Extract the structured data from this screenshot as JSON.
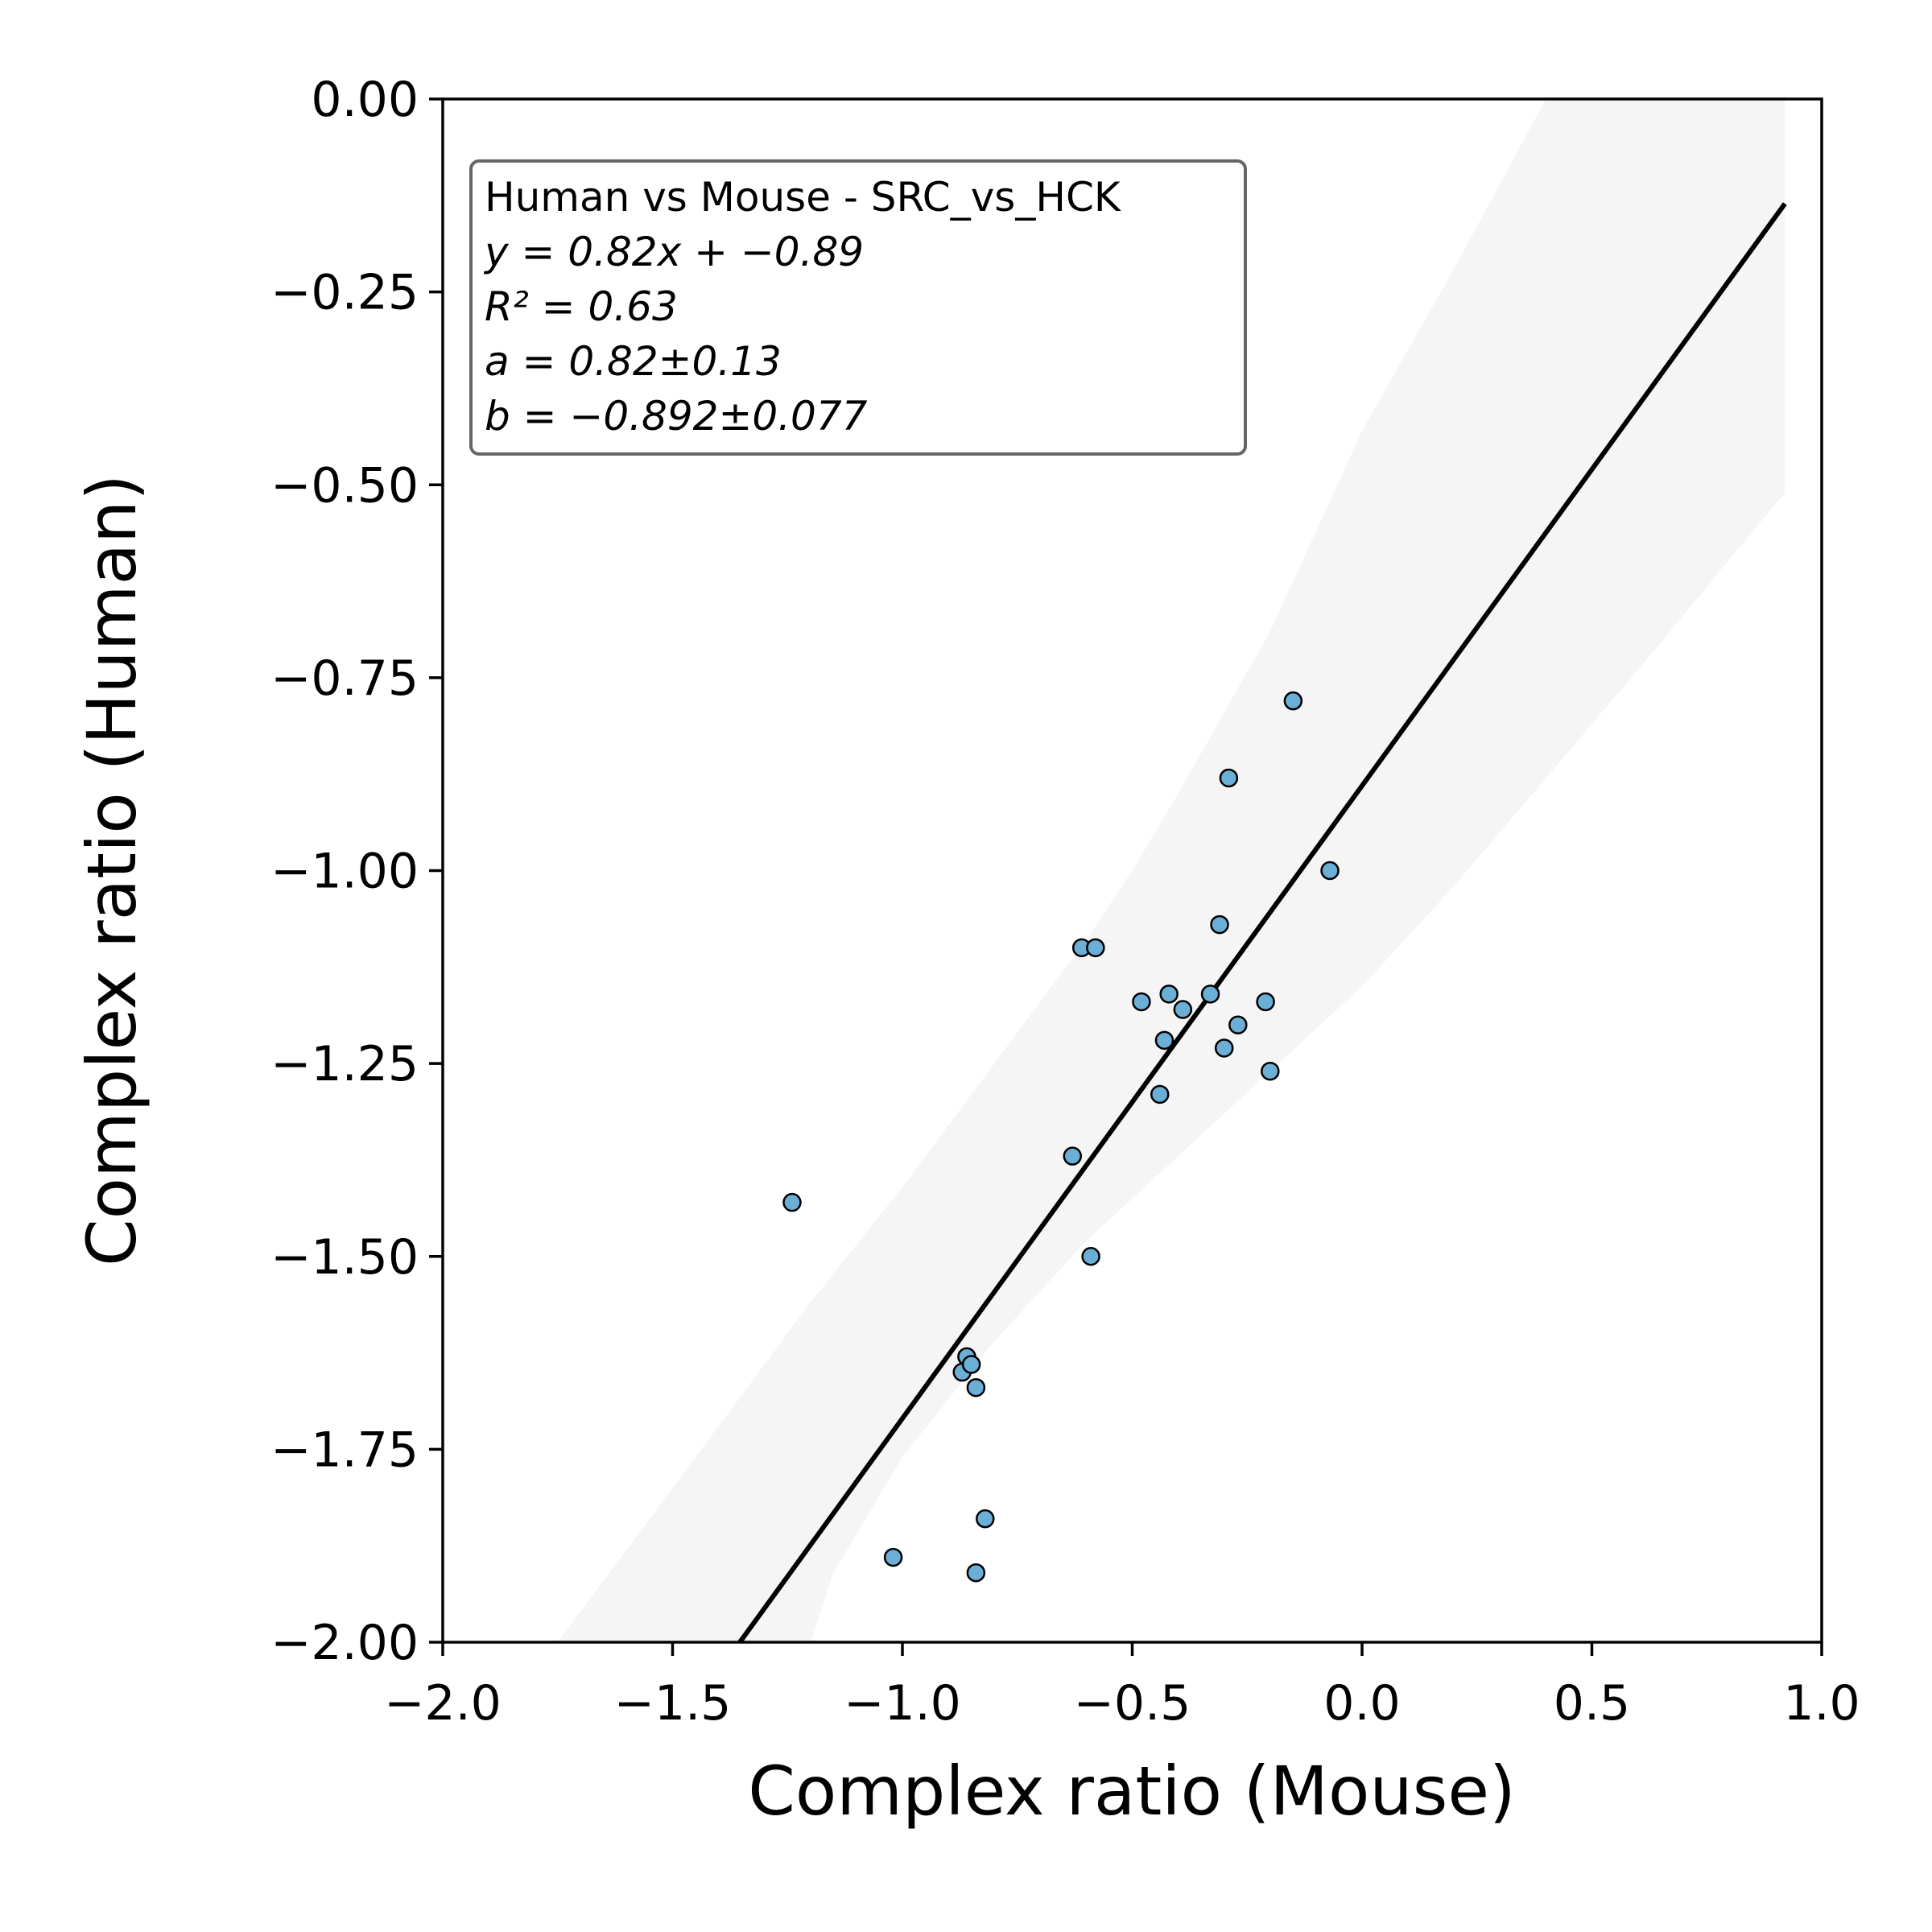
{
  "chart_data": {
    "type": "scatter",
    "xlabel": "Complex ratio (Mouse)",
    "ylabel": "Complex ratio (Human)",
    "xlim": [
      -2.0,
      1.0
    ],
    "ylim": [
      -2.0,
      0.0
    ],
    "xticks": [
      "−2.0",
      "−1.5",
      "−1.0",
      "−0.5",
      "0.0",
      "0.5",
      "1.0"
    ],
    "xtick_values": [
      -2.0,
      -1.5,
      -1.0,
      -0.5,
      0.0,
      0.5,
      1.0
    ],
    "yticks": [
      "0.00",
      "−0.25",
      "−0.50",
      "−0.75",
      "−1.00",
      "−1.25",
      "−1.50",
      "−1.75",
      "−2.00"
    ],
    "ytick_values": [
      0.0,
      -0.25,
      -0.5,
      -0.75,
      -1.0,
      -1.25,
      -1.5,
      -1.75,
      -2.0
    ],
    "grid": false,
    "point_color": "#6baed6",
    "line_color": "#000000",
    "band_color": "#eeeeee",
    "points": [
      {
        "x": -1.24,
        "y": -1.43
      },
      {
        "x": -1.02,
        "y": -1.89
      },
      {
        "x": -0.87,
        "y": -1.65
      },
      {
        "x": -0.86,
        "y": -1.63
      },
      {
        "x": -0.85,
        "y": -1.64
      },
      {
        "x": -0.84,
        "y": -1.67
      },
      {
        "x": -0.84,
        "y": -1.91
      },
      {
        "x": -0.82,
        "y": -1.84
      },
      {
        "x": -0.63,
        "y": -1.37
      },
      {
        "x": -0.61,
        "y": -1.1
      },
      {
        "x": -0.59,
        "y": -1.5
      },
      {
        "x": -0.58,
        "y": -1.1
      },
      {
        "x": -0.48,
        "y": -1.17
      },
      {
        "x": -0.44,
        "y": -1.29
      },
      {
        "x": -0.43,
        "y": -1.22
      },
      {
        "x": -0.42,
        "y": -1.16
      },
      {
        "x": -0.39,
        "y": -1.18
      },
      {
        "x": -0.33,
        "y": -1.16
      },
      {
        "x": -0.31,
        "y": -1.07
      },
      {
        "x": -0.3,
        "y": -1.23
      },
      {
        "x": -0.29,
        "y": -0.88
      },
      {
        "x": -0.27,
        "y": -1.2
      },
      {
        "x": -0.21,
        "y": -1.17
      },
      {
        "x": -0.2,
        "y": -1.26
      },
      {
        "x": -0.15,
        "y": -0.78
      },
      {
        "x": -0.07,
        "y": -1.0
      }
    ],
    "fit": {
      "slope": 0.82,
      "intercept": -0.89,
      "x_start": -1.36,
      "x_end": 0.92
    },
    "band": {
      "upper": [
        [
          -1.75,
          -2.0
        ],
        [
          -1.6,
          -1.88
        ],
        [
          -1.4,
          -1.72
        ],
        [
          -1.2,
          -1.56
        ],
        [
          -1.0,
          -1.41
        ],
        [
          -0.8,
          -1.25
        ],
        [
          -0.6,
          -1.09
        ],
        [
          -0.5,
          -1.0
        ],
        [
          -0.4,
          -0.9
        ],
        [
          -0.2,
          -0.69
        ],
        [
          0.0,
          -0.43
        ],
        [
          0.2,
          -0.22
        ],
        [
          0.4,
          0.0
        ],
        [
          0.92,
          0.0
        ]
      ],
      "lower": [
        [
          0.92,
          -0.51
        ],
        [
          0.6,
          -0.74
        ],
        [
          0.4,
          -0.88
        ],
        [
          0.2,
          -1.02
        ],
        [
          0.0,
          -1.15
        ],
        [
          -0.2,
          -1.26
        ],
        [
          -0.4,
          -1.37
        ],
        [
          -0.6,
          -1.48
        ],
        [
          -0.8,
          -1.61
        ],
        [
          -1.0,
          -1.76
        ],
        [
          -1.15,
          -1.91
        ],
        [
          -1.2,
          -2.0
        ]
      ]
    },
    "annotation": {
      "title": "Human vs Mouse - SRC_vs_HCK",
      "equation": "y = 0.82x + −0.89",
      "r2": "R² = 0.63",
      "a": "a = 0.82±0.13",
      "b": "b = −0.892±0.077"
    }
  }
}
